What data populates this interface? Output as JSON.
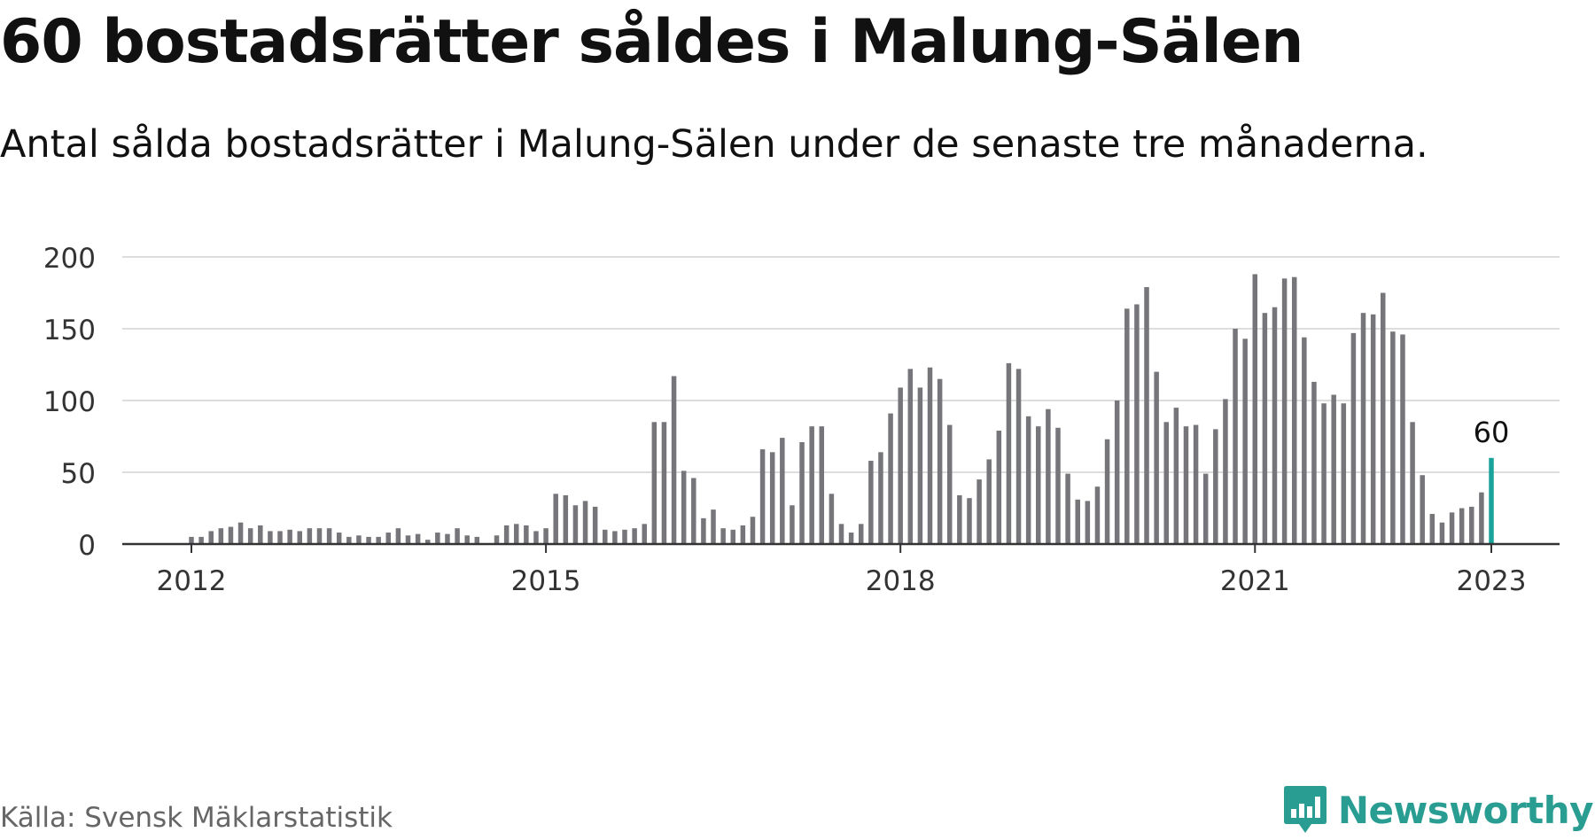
{
  "header": {
    "title": "60 bostadsrätter såldes i Malung-Sälen",
    "subtitle": "Antal sålda bostadsrätter i Malung-Sälen under de senaste tre månaderna."
  },
  "footer": {
    "source": "Källa: Svensk Mäklarstatistik",
    "brand": "Newsworthy"
  },
  "colors": {
    "bar": "#76757a",
    "highlight": "#1aa39b",
    "grid": "#dddddd",
    "axis": "#333333",
    "brand": "#2a9d93"
  },
  "chart_data": {
    "type": "bar",
    "xlabel": "",
    "ylabel": "",
    "ylim": [
      0,
      200
    ],
    "yticks": [
      "0",
      "50",
      "100",
      "150",
      "200"
    ],
    "xticks": [
      {
        "label": "2012",
        "x": 2012.0
      },
      {
        "label": "2015",
        "x": 2015.0
      },
      {
        "label": "2018",
        "x": 2018.0
      },
      {
        "label": "2021",
        "x": 2021.0
      },
      {
        "label": "2023",
        "x": 2023.0
      }
    ],
    "start_month": "2012-01",
    "values": [
      5,
      5,
      9,
      11,
      12,
      15,
      11,
      13,
      9,
      9,
      10,
      9,
      11,
      11,
      11,
      8,
      5,
      6,
      5,
      5,
      8,
      11,
      6,
      7,
      3,
      8,
      7,
      11,
      6,
      5,
      null,
      6,
      13,
      14,
      13,
      9,
      11,
      35,
      34,
      27,
      30,
      26,
      10,
      9,
      10,
      11,
      14,
      85,
      85,
      117,
      51,
      46,
      18,
      24,
      11,
      10,
      13,
      19,
      66,
      64,
      74,
      27,
      71,
      82,
      82,
      35,
      14,
      8,
      14,
      58,
      64,
      91,
      109,
      122,
      109,
      123,
      115,
      83,
      34,
      32,
      45,
      59,
      79,
      126,
      122,
      89,
      82,
      94,
      81,
      49,
      31,
      30,
      40,
      73,
      100,
      164,
      167,
      179,
      120,
      85,
      95,
      82,
      83,
      49,
      80,
      101,
      150,
      143,
      188,
      161,
      165,
      185,
      186,
      144,
      113,
      98,
      104,
      98,
      147,
      161,
      160,
      175,
      148,
      146,
      85,
      48,
      21,
      15,
      22,
      25,
      26,
      36,
      60
    ],
    "highlight_label": "60"
  }
}
